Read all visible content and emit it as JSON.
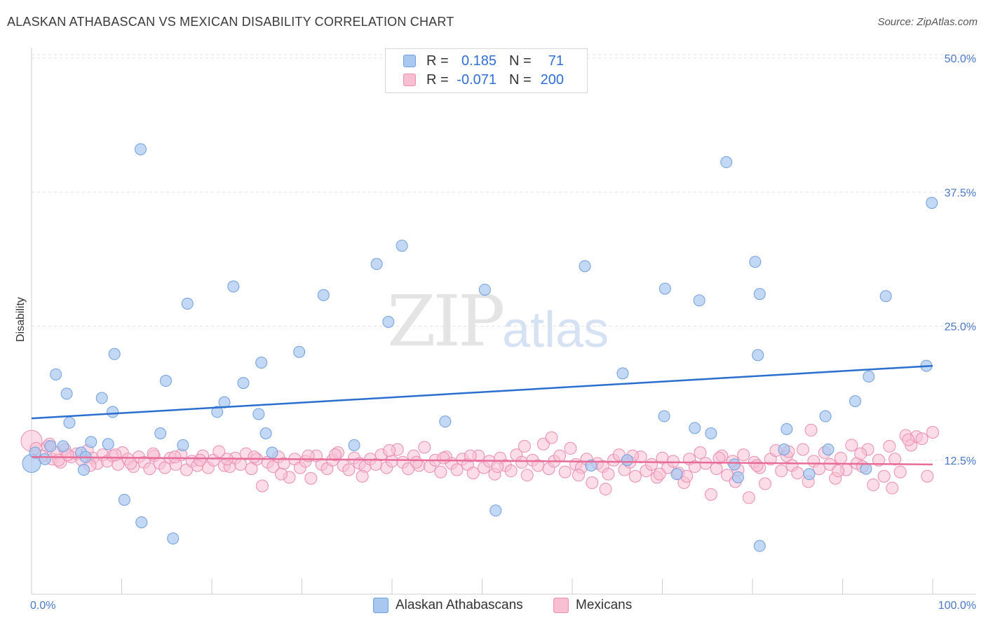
{
  "header": {
    "title": "ALASKAN ATHABASCAN VS MEXICAN DISABILITY CORRELATION CHART",
    "source": "Source: ZipAtlas.com"
  },
  "watermark": {
    "zip": "ZIP",
    "atlas": "atlas"
  },
  "legend": {
    "rows": [
      {
        "r_label": "R =",
        "r_value": "0.185",
        "n_label": "N =",
        "n_value": "71",
        "color": "#a9c8f0",
        "border": "#6f9fe0"
      },
      {
        "r_label": "R =",
        "r_value": "-0.071",
        "n_label": "N =",
        "n_value": "200",
        "color": "#f8bfd3",
        "border": "#eb8db0"
      }
    ]
  },
  "colors": {
    "blue_fill": "#a9c8f0",
    "blue_stroke": "#6f9fe0",
    "blue_line": "#2a6fd0",
    "pink_fill": "#f8bfd3",
    "pink_stroke": "#eb8db0",
    "pink_line": "#e86c97",
    "tick_label": "#4a78c8"
  },
  "chart_data": {
    "type": "scatter",
    "title": "ALASKAN ATHABASCAN VS MEXICAN DISABILITY CORRELATION CHART",
    "xlabel": "",
    "ylabel": "Disability",
    "xlim": [
      0,
      100
    ],
    "ylim": [
      0,
      50
    ],
    "x_tick_labels": [
      "0.0%",
      "100.0%"
    ],
    "y_ticks": [
      12.5,
      25.0,
      37.5,
      50.0
    ],
    "y_tick_labels": [
      "12.5%",
      "25.0%",
      "37.5%",
      "50.0%"
    ],
    "grid": "horizontal dashed",
    "legend_position": "top-center",
    "series": [
      {
        "name": "Alaskan Athabascans",
        "R": 0.185,
        "N": 71,
        "trend": {
          "x": [
            0,
            100
          ],
          "y": [
            16.4,
            21.3
          ]
        },
        "points": [
          [
            0,
            12.2
          ],
          [
            0.4,
            13.2
          ],
          [
            1.5,
            12.6
          ],
          [
            2.1,
            13.8
          ],
          [
            2.7,
            20.5
          ],
          [
            3.5,
            13.8
          ],
          [
            3.9,
            18.7
          ],
          [
            4.2,
            16.0
          ],
          [
            5.5,
            13.2
          ],
          [
            6.0,
            12.8
          ],
          [
            5.8,
            11.6
          ],
          [
            6.6,
            14.2
          ],
          [
            7.8,
            18.3
          ],
          [
            8.5,
            14.0
          ],
          [
            9.0,
            17.0
          ],
          [
            9.2,
            22.4
          ],
          [
            10.3,
            8.8
          ],
          [
            12.1,
            41.5
          ],
          [
            12.2,
            6.7
          ],
          [
            14.3,
            15.0
          ],
          [
            14.9,
            19.9
          ],
          [
            15.7,
            5.2
          ],
          [
            16.8,
            13.9
          ],
          [
            17.3,
            27.1
          ],
          [
            20.6,
            17.0
          ],
          [
            21.4,
            17.9
          ],
          [
            22.4,
            28.7
          ],
          [
            23.5,
            19.7
          ],
          [
            25.2,
            16.8
          ],
          [
            25.5,
            21.6
          ],
          [
            26.0,
            15.0
          ],
          [
            26.7,
            13.2
          ],
          [
            29.7,
            22.6
          ],
          [
            32.4,
            27.9
          ],
          [
            35.8,
            13.9
          ],
          [
            38.3,
            30.8
          ],
          [
            39.6,
            25.4
          ],
          [
            41.1,
            32.5
          ],
          [
            45.9,
            16.1
          ],
          [
            50.3,
            28.4
          ],
          [
            51.5,
            7.8
          ],
          [
            61.4,
            30.6
          ],
          [
            62.1,
            12.0
          ],
          [
            65.6,
            20.6
          ],
          [
            66.1,
            12.5
          ],
          [
            70.2,
            16.6
          ],
          [
            70.3,
            28.5
          ],
          [
            71.6,
            11.2
          ],
          [
            73.6,
            15.5
          ],
          [
            74.1,
            27.4
          ],
          [
            75.4,
            15.0
          ],
          [
            77.1,
            40.3
          ],
          [
            78.0,
            12.1
          ],
          [
            78.4,
            10.9
          ],
          [
            80.3,
            31.0
          ],
          [
            80.6,
            22.3
          ],
          [
            80.8,
            4.5
          ],
          [
            80.8,
            28.0
          ],
          [
            83.5,
            13.5
          ],
          [
            83.8,
            15.4
          ],
          [
            86.3,
            11.2
          ],
          [
            88.1,
            16.6
          ],
          [
            88.4,
            13.5
          ],
          [
            91.4,
            18.0
          ],
          [
            92.6,
            11.7
          ],
          [
            92.9,
            20.3
          ],
          [
            94.8,
            27.8
          ],
          [
            99.3,
            21.3
          ],
          [
            99.9,
            36.5
          ]
        ]
      },
      {
        "name": "Mexicans",
        "R": -0.071,
        "N": 200,
        "trend": {
          "x": [
            0,
            100
          ],
          "y": [
            12.8,
            12.1
          ]
        },
        "points": [
          [
            0,
            14.3
          ],
          [
            0.5,
            13.6
          ],
          [
            1.2,
            12.9
          ],
          [
            1.8,
            13.8
          ],
          [
            2.3,
            12.6
          ],
          [
            2.8,
            13.2
          ],
          [
            3.2,
            12.3
          ],
          [
            3.7,
            13.5
          ],
          [
            4.4,
            12.8
          ],
          [
            5.0,
            13.1
          ],
          [
            5.6,
            12.5
          ],
          [
            6.2,
            13.4
          ],
          [
            6.8,
            12.7
          ],
          [
            7.3,
            12.2
          ],
          [
            7.9,
            13.0
          ],
          [
            8.4,
            12.4
          ],
          [
            9.0,
            12.9
          ],
          [
            9.6,
            12.1
          ],
          [
            10.1,
            13.2
          ],
          [
            10.7,
            12.6
          ],
          [
            11.3,
            11.9
          ],
          [
            11.9,
            12.8
          ],
          [
            12.5,
            12.3
          ],
          [
            13.1,
            11.7
          ],
          [
            13.6,
            12.9
          ],
          [
            14.2,
            12.2
          ],
          [
            14.8,
            11.8
          ],
          [
            15.4,
            12.7
          ],
          [
            16.0,
            12.1
          ],
          [
            16.6,
            13.0
          ],
          [
            17.2,
            11.6
          ],
          [
            17.8,
            12.4
          ],
          [
            18.4,
            12.0
          ],
          [
            19.0,
            12.9
          ],
          [
            19.6,
            11.8
          ],
          [
            20.2,
            12.5
          ],
          [
            20.8,
            13.3
          ],
          [
            21.4,
            12.0
          ],
          [
            22.0,
            11.9
          ],
          [
            22.6,
            12.7
          ],
          [
            23.2,
            12.1
          ],
          [
            23.8,
            13.1
          ],
          [
            24.4,
            11.7
          ],
          [
            25.0,
            12.6
          ],
          [
            25.6,
            10.1
          ],
          [
            26.2,
            12.3
          ],
          [
            26.8,
            11.9
          ],
          [
            27.4,
            12.8
          ],
          [
            28.0,
            12.2
          ],
          [
            28.6,
            10.9
          ],
          [
            29.2,
            12.6
          ],
          [
            29.8,
            11.8
          ],
          [
            30.4,
            12.4
          ],
          [
            31.0,
            10.8
          ],
          [
            31.6,
            12.9
          ],
          [
            32.2,
            12.1
          ],
          [
            32.8,
            11.7
          ],
          [
            33.4,
            12.5
          ],
          [
            34.0,
            13.2
          ],
          [
            34.6,
            12.0
          ],
          [
            35.2,
            11.6
          ],
          [
            35.8,
            12.7
          ],
          [
            36.4,
            12.2
          ],
          [
            37.0,
            11.9
          ],
          [
            37.6,
            12.6
          ],
          [
            38.2,
            12.1
          ],
          [
            38.8,
            13.0
          ],
          [
            39.4,
            11.8
          ],
          [
            40.0,
            12.4
          ],
          [
            40.6,
            13.5
          ],
          [
            41.2,
            12.3
          ],
          [
            41.8,
            11.7
          ],
          [
            42.4,
            12.9
          ],
          [
            43.0,
            12.0
          ],
          [
            43.6,
            13.7
          ],
          [
            44.2,
            11.9
          ],
          [
            44.8,
            12.5
          ],
          [
            45.4,
            11.4
          ],
          [
            46.0,
            12.8
          ],
          [
            46.6,
            12.2
          ],
          [
            47.2,
            11.6
          ],
          [
            47.8,
            12.6
          ],
          [
            48.4,
            12.1
          ],
          [
            49.0,
            11.3
          ],
          [
            49.6,
            12.9
          ],
          [
            50.2,
            11.8
          ],
          [
            50.8,
            12.4
          ],
          [
            51.4,
            11.2
          ],
          [
            52.0,
            12.7
          ],
          [
            52.6,
            12.0
          ],
          [
            53.2,
            11.5
          ],
          [
            53.8,
            13.0
          ],
          [
            54.4,
            12.3
          ],
          [
            55.0,
            11.1
          ],
          [
            55.6,
            12.5
          ],
          [
            56.2,
            12.0
          ],
          [
            56.8,
            14.0
          ],
          [
            57.4,
            11.7
          ],
          [
            58.0,
            12.4
          ],
          [
            58.6,
            12.9
          ],
          [
            59.2,
            11.4
          ],
          [
            59.8,
            13.6
          ],
          [
            60.4,
            12.1
          ],
          [
            61.0,
            11.8
          ],
          [
            61.6,
            12.6
          ],
          [
            62.2,
            10.4
          ],
          [
            62.8,
            12.2
          ],
          [
            63.4,
            11.9
          ],
          [
            64.0,
            11.2
          ],
          [
            64.6,
            12.5
          ],
          [
            65.2,
            13.0
          ],
          [
            65.8,
            11.6
          ],
          [
            66.4,
            12.3
          ],
          [
            67.0,
            11.0
          ],
          [
            67.6,
            12.8
          ],
          [
            68.2,
            11.5
          ],
          [
            68.8,
            12.1
          ],
          [
            69.4,
            10.9
          ],
          [
            70.0,
            12.7
          ],
          [
            70.6,
            11.8
          ],
          [
            71.2,
            12.4
          ],
          [
            71.8,
            11.3
          ],
          [
            72.4,
            10.4
          ],
          [
            73.0,
            12.6
          ],
          [
            73.6,
            11.9
          ],
          [
            74.2,
            13.2
          ],
          [
            74.8,
            12.2
          ],
          [
            75.4,
            9.3
          ],
          [
            76.0,
            11.7
          ],
          [
            76.6,
            12.9
          ],
          [
            77.2,
            11.1
          ],
          [
            77.8,
            12.4
          ],
          [
            78.4,
            11.6
          ],
          [
            79.0,
            13.0
          ],
          [
            79.6,
            9.0
          ],
          [
            80.2,
            12.3
          ],
          [
            80.8,
            11.8
          ],
          [
            81.4,
            10.3
          ],
          [
            82.0,
            12.6
          ],
          [
            82.6,
            13.4
          ],
          [
            83.2,
            11.5
          ],
          [
            83.8,
            12.9
          ],
          [
            84.4,
            12.0
          ],
          [
            85.0,
            11.3
          ],
          [
            85.6,
            13.5
          ],
          [
            86.2,
            10.5
          ],
          [
            86.8,
            12.4
          ],
          [
            87.4,
            11.7
          ],
          [
            88.0,
            13.2
          ],
          [
            88.6,
            12.1
          ],
          [
            89.2,
            10.8
          ],
          [
            89.8,
            12.7
          ],
          [
            90.4,
            11.6
          ],
          [
            91.0,
            13.9
          ],
          [
            91.6,
            12.2
          ],
          [
            92.2,
            11.9
          ],
          [
            92.8,
            13.5
          ],
          [
            93.4,
            10.2
          ],
          [
            94.0,
            12.5
          ],
          [
            94.6,
            11.0
          ],
          [
            95.2,
            13.8
          ],
          [
            95.8,
            12.6
          ],
          [
            96.4,
            11.4
          ],
          [
            97.0,
            14.8
          ],
          [
            97.6,
            13.9
          ],
          [
            98.2,
            14.7
          ],
          [
            98.8,
            14.5
          ],
          [
            99.4,
            11.0
          ],
          [
            100.0,
            15.1
          ],
          [
            2.0,
            14.0
          ],
          [
            3.0,
            12.5
          ],
          [
            4.0,
            13.0
          ],
          [
            6.5,
            12.0
          ],
          [
            9.3,
            13.0
          ],
          [
            11.0,
            12.2
          ],
          [
            13.5,
            13.1
          ],
          [
            15.9,
            12.8
          ],
          [
            18.7,
            12.5
          ],
          [
            21.7,
            12.6
          ],
          [
            24.7,
            12.8
          ],
          [
            27.7,
            11.2
          ],
          [
            30.7,
            12.9
          ],
          [
            33.7,
            13.0
          ],
          [
            36.7,
            11.0
          ],
          [
            39.7,
            13.4
          ],
          [
            42.7,
            12.3
          ],
          [
            45.7,
            12.7
          ],
          [
            48.7,
            12.9
          ],
          [
            51.7,
            11.9
          ],
          [
            54.7,
            13.8
          ],
          [
            57.7,
            14.6
          ],
          [
            60.7,
            11.1
          ],
          [
            63.7,
            9.8
          ],
          [
            66.7,
            12.9
          ],
          [
            69.7,
            11.2
          ],
          [
            72.7,
            11.0
          ],
          [
            76.3,
            12.7
          ],
          [
            78.1,
            10.5
          ],
          [
            80.5,
            12.0
          ],
          [
            84.0,
            13.3
          ],
          [
            86.5,
            15.3
          ],
          [
            89.5,
            11.5
          ],
          [
            92.0,
            13.1
          ],
          [
            95.5,
            9.9
          ],
          [
            97.3,
            14.4
          ]
        ]
      }
    ]
  },
  "bottom_legend": {
    "items": [
      {
        "label": "Alaskan Athabascans",
        "color": "#a9c8f0",
        "border": "#6f9fe0"
      },
      {
        "label": "Mexicans",
        "color": "#f8bfd3",
        "border": "#eb8db0"
      }
    ]
  }
}
